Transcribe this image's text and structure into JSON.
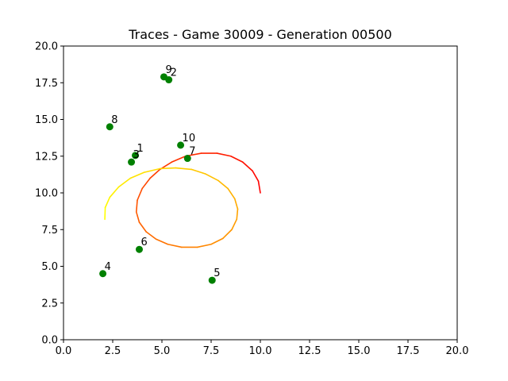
{
  "chart_data": {
    "type": "scatter",
    "title": "Traces - Game 30009 - Generation 00500",
    "xlabel": "",
    "ylabel": "",
    "xlim": [
      0,
      20
    ],
    "ylim": [
      0,
      20
    ],
    "x_ticks": [
      "0.0",
      "2.5",
      "5.0",
      "7.5",
      "10.0",
      "12.5",
      "15.0",
      "17.5",
      "20.0"
    ],
    "y_ticks": [
      "0.0",
      "2.5",
      "5.0",
      "7.5",
      "10.0",
      "12.5",
      "15.0",
      "17.5",
      "20.0"
    ],
    "grid": false,
    "legend": "none",
    "points": [
      {
        "label": "1",
        "x": 3.65,
        "y": 12.55
      },
      {
        "label": "2",
        "x": 5.35,
        "y": 17.7
      },
      {
        "label": "3",
        "x": 3.45,
        "y": 12.1
      },
      {
        "label": "4",
        "x": 2.0,
        "y": 4.5
      },
      {
        "label": "5",
        "x": 7.55,
        "y": 4.05
      },
      {
        "label": "6",
        "x": 3.85,
        "y": 6.15
      },
      {
        "label": "8",
        "x": 2.35,
        "y": 14.5
      },
      {
        "label": "9",
        "x": 5.1,
        "y": 17.9
      },
      {
        "label": "10",
        "x": 5.95,
        "y": 13.25
      },
      {
        "label": "7",
        "x": 6.3,
        "y": 12.35
      }
    ],
    "point_color": "#008000",
    "trace": {
      "description_colors": [
        "#ff0000",
        "#ff8000",
        "#ffff00"
      ],
      "path": [
        [
          10.0,
          10.0
        ],
        [
          9.9,
          10.8
        ],
        [
          9.6,
          11.5
        ],
        [
          9.1,
          12.1
        ],
        [
          8.5,
          12.5
        ],
        [
          7.8,
          12.7
        ],
        [
          7.0,
          12.7
        ],
        [
          6.2,
          12.5
        ],
        [
          5.5,
          12.1
        ],
        [
          4.9,
          11.6
        ],
        [
          4.4,
          11.0
        ],
        [
          4.0,
          10.3
        ],
        [
          3.75,
          9.5
        ],
        [
          3.7,
          8.7
        ],
        [
          3.85,
          8.0
        ],
        [
          4.2,
          7.35
        ],
        [
          4.7,
          6.85
        ],
        [
          5.3,
          6.5
        ],
        [
          6.0,
          6.3
        ],
        [
          6.8,
          6.3
        ],
        [
          7.5,
          6.5
        ],
        [
          8.1,
          6.9
        ],
        [
          8.55,
          7.5
        ],
        [
          8.8,
          8.2
        ],
        [
          8.85,
          8.9
        ],
        [
          8.7,
          9.6
        ],
        [
          8.35,
          10.3
        ],
        [
          7.85,
          10.85
        ],
        [
          7.2,
          11.3
        ],
        [
          6.5,
          11.6
        ],
        [
          5.7,
          11.7
        ],
        [
          4.9,
          11.65
        ],
        [
          4.1,
          11.4
        ],
        [
          3.4,
          11.0
        ],
        [
          2.8,
          10.4
        ],
        [
          2.35,
          9.7
        ],
        [
          2.12,
          9.0
        ],
        [
          2.1,
          8.2
        ]
      ]
    }
  }
}
